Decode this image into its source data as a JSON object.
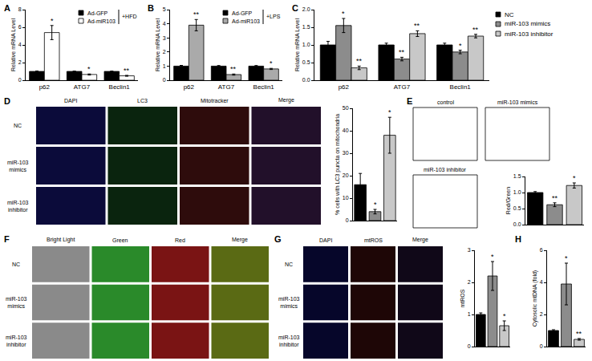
{
  "chart_data": [
    {
      "type": "bar",
      "categories": [
        "p62",
        "ATG7",
        "Beclin1"
      ],
      "ylabel": "Relative mRNA Level",
      "ylim": [
        0,
        8
      ],
      "yticks": [
        0,
        2,
        4,
        6,
        8
      ],
      "grid": false,
      "legend": "upper right",
      "annotations": [
        "+HFD"
      ],
      "series": [
        {
          "name": "Ad-GFP",
          "color": "#000000",
          "values": [
            1,
            1,
            1
          ],
          "errors": [
            0.05,
            0.04,
            0.04
          ]
        },
        {
          "name": "Ad-miR103",
          "color": "#ffffff",
          "values": [
            5.4,
            0.65,
            0.5
          ],
          "errors": [
            0.8,
            0.06,
            0.05
          ],
          "significance": [
            "*",
            "*",
            "**"
          ]
        }
      ]
    },
    {
      "type": "bar",
      "categories": [
        "p62",
        "ATG7",
        "Beclin1"
      ],
      "ylabel": "Relative mRNA Level",
      "ylim": [
        0,
        5
      ],
      "yticks": [
        0,
        1,
        2,
        3,
        4,
        5
      ],
      "grid": false,
      "legend": "upper right",
      "annotations": [
        "+LPS"
      ],
      "series": [
        {
          "name": "Ad-GFP",
          "color": "#000000",
          "values": [
            1,
            1,
            1
          ],
          "errors": [
            0.05,
            0.04,
            0.04
          ]
        },
        {
          "name": "Ad-miR103",
          "color": "#aaaaaa",
          "values": [
            3.9,
            0.4,
            0.8
          ],
          "errors": [
            0.4,
            0.04,
            0.04
          ],
          "significance": [
            "**",
            "**",
            "*"
          ]
        }
      ]
    },
    {
      "type": "bar",
      "categories": [
        "p62",
        "ATG7",
        "Beclin1"
      ],
      "ylabel": "Relative mRNA Level",
      "ylim": [
        0,
        2
      ],
      "yticks": [
        {
          "value": 0,
          "label": "0.0"
        },
        {
          "value": 0.5,
          "label": "0.5"
        },
        {
          "value": 1,
          "label": "1.0"
        },
        {
          "value": 1.5,
          "label": "1.5"
        },
        {
          "value": 2,
          "label": "2.0"
        }
      ],
      "grid": false,
      "legend": "right",
      "series": [
        {
          "name": "NC",
          "color": "#000000",
          "values": [
            1,
            1,
            1
          ],
          "errors": [
            0.1,
            0.05,
            0.05
          ]
        },
        {
          "name": "miR-103 mimics",
          "color": "#8c8c8c",
          "values": [
            1.55,
            0.6,
            0.8
          ],
          "errors": [
            0.2,
            0.05,
            0.05
          ],
          "significance": [
            "*",
            "**",
            "*"
          ]
        },
        {
          "name": "miR-103 inhibitor",
          "color": "#c8c8c8",
          "values": [
            0.35,
            1.32,
            1.25
          ],
          "errors": [
            0.05,
            0.08,
            0.05
          ],
          "significance": [
            "**",
            "**",
            "**"
          ]
        }
      ]
    },
    {
      "type": "bar",
      "categories": [
        null,
        null,
        null
      ],
      "ylabel": "% cells with LC3 puncta on mitochondria",
      "ylim": [
        0,
        50
      ],
      "yticks": [
        0,
        10,
        20,
        30,
        40,
        50
      ],
      "grid": false,
      "tick_labels": "y",
      "values": [
        16,
        4,
        38
      ],
      "errors": [
        5,
        1,
        8
      ],
      "significance": [
        null,
        "*",
        "*"
      ],
      "colors": [
        "#000000",
        "#8c8c8c",
        "#c8c8c8"
      ]
    },
    {
      "type": "bar",
      "categories": [
        null,
        null,
        null
      ],
      "ylabel": "Red/Green",
      "ylim": [
        0,
        1.5
      ],
      "yticks": [
        {
          "value": 0,
          "label": "0.0"
        },
        {
          "value": 0.5,
          "label": "0.5"
        },
        {
          "value": 1,
          "label": "1.0"
        },
        {
          "value": 1.5,
          "label": "1.5"
        }
      ],
      "grid": false,
      "tick_labels": "y",
      "values": [
        1,
        0.62,
        1.22
      ],
      "errors": [
        0.03,
        0.06,
        0.08
      ],
      "significance": [
        null,
        "**",
        "*"
      ],
      "colors": [
        "#000000",
        "#8c8c8c",
        "#c8c8c8"
      ]
    },
    {
      "type": "bar",
      "categories": [
        null,
        null,
        null
      ],
      "ylabel": "mtROS",
      "ylim": [
        0,
        3
      ],
      "yticks": [
        0,
        1,
        2,
        3
      ],
      "grid": false,
      "tick_labels": "y",
      "values": [
        1,
        2.2,
        0.65
      ],
      "errors": [
        0.05,
        0.45,
        0.15
      ],
      "significance": [
        null,
        "*",
        "*"
      ],
      "colors": [
        "#000000",
        "#8c8c8c",
        "#c8c8c8"
      ]
    },
    {
      "type": "bar",
      "categories": [
        null,
        null,
        null
      ],
      "ylabel": "Cytosolic mtDNA (fold)",
      "ylim": [
        0,
        6
      ],
      "yticks": [
        0,
        2,
        4,
        6
      ],
      "grid": false,
      "tick_labels": "y",
      "values": [
        1,
        3.9,
        0.45
      ],
      "errors": [
        0.05,
        1.3,
        0.05
      ],
      "significance": [
        null,
        "*",
        "**"
      ],
      "colors": [
        "#000000",
        "#8c8c8c",
        "#c8c8c8"
      ]
    }
  ],
  "panel_labels": [
    "A",
    "B",
    "C",
    "D",
    "E",
    "F",
    "G",
    "H"
  ],
  "image_panels": [
    {
      "columns": [
        {
          "label": "DAPI",
          "color": "#0b0b3a"
        },
        {
          "label": "LC3",
          "color": "#0a240e"
        },
        {
          "label": "Mitotracker",
          "color": "#2e0c0c"
        },
        {
          "label": "Merge",
          "color": "#22102a"
        }
      ],
      "rows": [
        "NC",
        "miR-103 mimics",
        "miR-103 inhibitor"
      ]
    },
    {
      "tiles": [
        "control",
        "miR-103 mimics",
        "miR-103 inhibitor"
      ]
    },
    {
      "columns": [
        {
          "label": "Bright Light",
          "color": "#8a8a8a"
        },
        {
          "label": "Green",
          "color": "#2a8a2a"
        },
        {
          "label": "Red",
          "color": "#7a1414"
        },
        {
          "label": "Merge",
          "color": "#5a6a14"
        }
      ],
      "rows": [
        "NC",
        "miR-103 mimics",
        "miR-103 inhibitor"
      ]
    },
    {
      "columns": [
        {
          "label": "DAPI",
          "color": "#06062a"
        },
        {
          "label": "mtROS",
          "color": "#1e0606"
        },
        {
          "label": "Merge",
          "color": "#100818"
        }
      ],
      "rows": [
        "NC",
        "miR-103 mimics",
        "miR-103 inhibitor"
      ]
    }
  ]
}
